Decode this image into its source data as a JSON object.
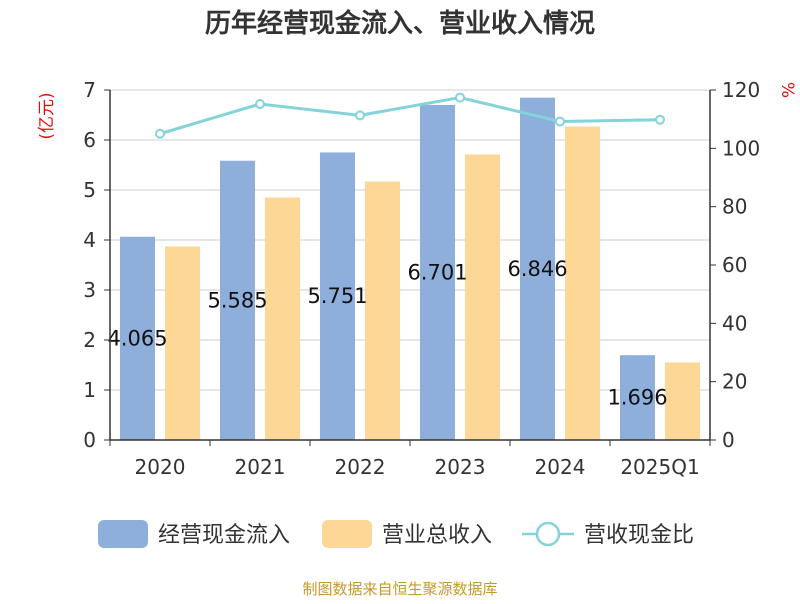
{
  "chart_data": {
    "type": "bar",
    "title": "历年经营现金流入、营业收入情况",
    "categories": [
      "2020",
      "2021",
      "2022",
      "2023",
      "2024",
      "2025Q1"
    ],
    "series": [
      {
        "name": "经营现金流入",
        "kind": "bar",
        "axis": "left",
        "color": "#8eaedb",
        "values": [
          4.065,
          5.585,
          5.751,
          6.701,
          6.846,
          1.696
        ],
        "labels": [
          "4.065",
          "5.585",
          "5.751",
          "6.701",
          "6.846",
          "1.696"
        ]
      },
      {
        "name": "营业总收入",
        "kind": "bar",
        "axis": "left",
        "color": "#fdd795",
        "values": [
          3.87,
          4.85,
          5.17,
          5.71,
          6.27,
          1.55
        ]
      },
      {
        "name": "营收现金比",
        "kind": "line",
        "axis": "right",
        "color": "#84d3d8",
        "values": [
          105,
          115.2,
          111.3,
          117.4,
          109.2,
          109.8
        ]
      }
    ],
    "yleft": {
      "unit": "(亿元)",
      "ylim": [
        0,
        7
      ],
      "ticks": [
        "0",
        "1",
        "2",
        "3",
        "4",
        "5",
        "6",
        "7"
      ]
    },
    "yright": {
      "unit": "%",
      "ylim": [
        0,
        120
      ],
      "ticks": [
        "0",
        "20",
        "40",
        "60",
        "80",
        "100",
        "120"
      ]
    },
    "grid": true,
    "legend_position": "bottom"
  },
  "footer": {
    "source": "制图数据来自恒生聚源数据库"
  },
  "colors": {
    "title": "#333333",
    "axis": "#333333",
    "unit": "#dd1111",
    "grid": "#cccccc",
    "footer": "#c49a2a"
  }
}
